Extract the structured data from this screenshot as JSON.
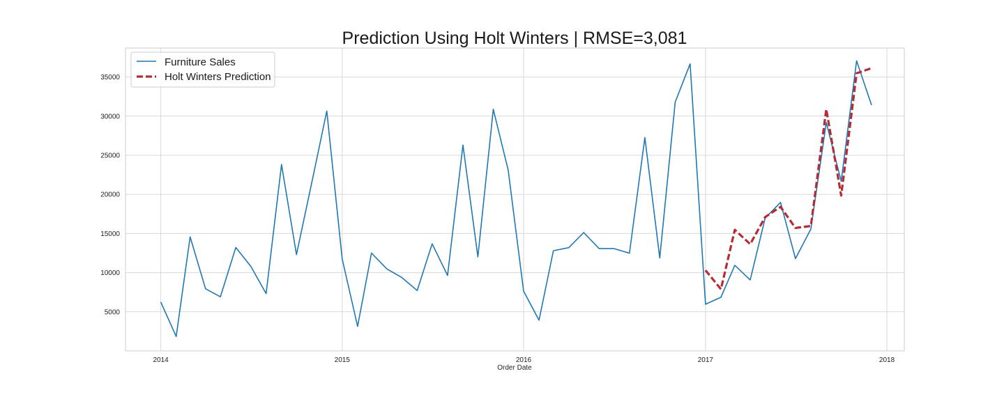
{
  "chart_data": {
    "type": "line",
    "title": "Prediction Using Holt Winters | RMSE=3,081",
    "xlabel": "Order Date",
    "ylabel": "",
    "xlim": [
      "2013-10-22",
      "2018-02-05"
    ],
    "ylim": [
      0,
      38700
    ],
    "x_ticks": [
      "2014",
      "2015",
      "2016",
      "2017",
      "2018"
    ],
    "y_ticks": [
      5000,
      10000,
      15000,
      20000,
      25000,
      30000,
      35000
    ],
    "grid": true,
    "legend_position": "upper-left",
    "series": [
      {
        "name": "Furniture Sales",
        "color": "#1f77b4",
        "style": "solid",
        "x": [
          "2014-01-01",
          "2014-02-01",
          "2014-03-01",
          "2014-04-01",
          "2014-05-01",
          "2014-06-01",
          "2014-07-01",
          "2014-08-01",
          "2014-09-01",
          "2014-10-01",
          "2014-11-01",
          "2014-12-01",
          "2015-01-01",
          "2015-02-01",
          "2015-03-01",
          "2015-04-01",
          "2015-05-01",
          "2015-06-01",
          "2015-07-01",
          "2015-08-01",
          "2015-09-01",
          "2015-10-01",
          "2015-11-01",
          "2015-12-01",
          "2016-01-01",
          "2016-02-01",
          "2016-03-01",
          "2016-04-01",
          "2016-05-01",
          "2016-06-01",
          "2016-07-01",
          "2016-08-01",
          "2016-09-01",
          "2016-10-01",
          "2016-11-01",
          "2016-12-01",
          "2017-01-01",
          "2017-02-01",
          "2017-03-01",
          "2017-04-01",
          "2017-05-01",
          "2017-06-01",
          "2017-07-01",
          "2017-08-01",
          "2017-09-01",
          "2017-10-01",
          "2017-11-01",
          "2017-12-01"
        ],
        "values": [
          6240,
          1840,
          14570,
          7940,
          6910,
          13210,
          10820,
          7320,
          23820,
          12300,
          21560,
          30650,
          11740,
          3130,
          12500,
          10470,
          9380,
          7710,
          13680,
          9640,
          26300,
          12010,
          30880,
          23090,
          7620,
          3920,
          12800,
          13190,
          15120,
          13070,
          13070,
          12480,
          27260,
          11870,
          31790,
          36680,
          5960,
          6850,
          10930,
          9070,
          16960,
          18980,
          11790,
          15580,
          29180,
          21680,
          37060,
          31410
        ]
      },
      {
        "name": "Holt Winters Prediction",
        "color": "#b22d35",
        "style": "dashed",
        "x": [
          "2017-01-01",
          "2017-02-01",
          "2017-03-01",
          "2017-04-01",
          "2017-05-01",
          "2017-06-01",
          "2017-07-01",
          "2017-08-01",
          "2017-09-01",
          "2017-10-01",
          "2017-11-01",
          "2017-12-01"
        ],
        "values": [
          10300,
          7880,
          15470,
          13640,
          17100,
          18410,
          15710,
          15960,
          30880,
          19850,
          35470,
          36130
        ]
      }
    ]
  }
}
